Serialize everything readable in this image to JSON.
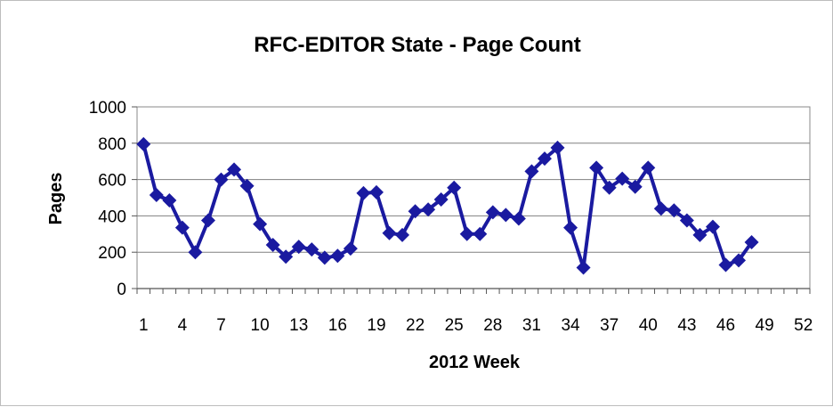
{
  "chart_data": {
    "type": "line",
    "title": "RFC-EDITOR State - Page Count",
    "xlabel": "2012 Week",
    "ylabel": "Pages",
    "xlim": [
      1,
      52
    ],
    "ylim": [
      0,
      1000
    ],
    "yticks": [
      0,
      200,
      400,
      600,
      800,
      1000
    ],
    "xtick_labels": [
      1,
      4,
      7,
      10,
      13,
      16,
      19,
      22,
      25,
      28,
      31,
      34,
      37,
      40,
      43,
      46,
      49,
      52
    ],
    "grid": "horizontal",
    "legend": "none",
    "series_color": "#1a1aa0",
    "series": [
      {
        "x": [
          1,
          2,
          3,
          4,
          5,
          6,
          7,
          8,
          9,
          10,
          11,
          12,
          13,
          14,
          15,
          16,
          17,
          18,
          19,
          20,
          21,
          22,
          23,
          24,
          25,
          26,
          27,
          28,
          29,
          30,
          31,
          32,
          33,
          34,
          35,
          36,
          37,
          38,
          39,
          40,
          41,
          42,
          43,
          44,
          45,
          46,
          47,
          48
        ],
        "values": [
          795,
          515,
          485,
          335,
          200,
          375,
          600,
          655,
          565,
          355,
          240,
          175,
          230,
          215,
          170,
          180,
          220,
          525,
          530,
          305,
          295,
          425,
          435,
          490,
          555,
          300,
          300,
          420,
          405,
          385,
          645,
          715,
          775,
          335,
          115,
          665,
          555,
          605,
          560,
          665,
          440,
          430,
          375,
          295,
          340,
          130,
          155,
          255
        ]
      }
    ]
  }
}
